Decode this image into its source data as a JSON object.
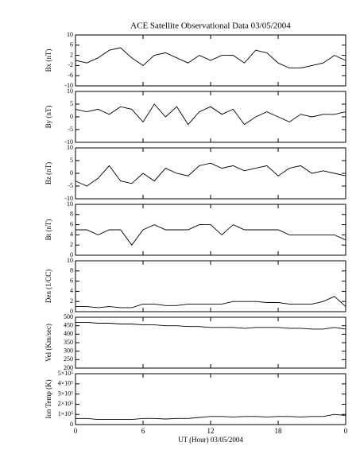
{
  "chart_data": [
    {
      "type": "line",
      "title": "ACE Satellite Observational Data   03/05/2004",
      "ylabel": "Bx (nT)",
      "color": "#000000",
      "x": [
        0,
        1,
        2,
        3,
        4,
        5,
        6,
        7,
        8,
        9,
        10,
        11,
        12,
        13,
        14,
        15,
        16,
        17,
        18,
        19,
        20,
        21,
        22,
        23,
        24
      ],
      "values": [
        0,
        -1,
        1,
        4,
        5,
        1,
        -2,
        2,
        3,
        1,
        -1,
        2,
        0,
        2,
        2,
        -1,
        4,
        3,
        -1,
        -3,
        -3,
        -2,
        -1,
        2,
        0
      ],
      "xlim": [
        0,
        24
      ],
      "xticks": [
        0,
        6,
        12,
        18,
        {
          "value": 24,
          "label": "0"
        }
      ],
      "ylim": [
        -10,
        10
      ],
      "yticks": [
        10,
        6,
        2,
        -2,
        -6,
        -10
      ]
    },
    {
      "type": "line",
      "ylabel": "By (nT)",
      "color": "#000000",
      "x": [
        0,
        1,
        2,
        3,
        4,
        5,
        6,
        7,
        8,
        9,
        10,
        11,
        12,
        13,
        14,
        15,
        16,
        17,
        18,
        19,
        20,
        21,
        22,
        23,
        24
      ],
      "values": [
        3,
        2,
        3,
        1,
        4,
        3,
        -2,
        5,
        0,
        4,
        -3,
        2,
        4,
        1,
        3,
        -3,
        0,
        2,
        0,
        -2,
        1,
        0,
        1,
        1,
        2
      ],
      "xlim": [
        0,
        24
      ],
      "xticks": [
        0,
        6,
        12,
        18,
        {
          "value": 24,
          "label": "0"
        }
      ],
      "ylim": [
        -10,
        10
      ],
      "yticks": [
        10,
        5,
        0,
        -5,
        -10
      ]
    },
    {
      "type": "line",
      "ylabel": "Bz (nT)",
      "color": "#000000",
      "x": [
        0,
        1,
        2,
        3,
        4,
        5,
        6,
        7,
        8,
        9,
        10,
        11,
        12,
        13,
        14,
        15,
        16,
        17,
        18,
        19,
        20,
        21,
        22,
        23,
        24
      ],
      "values": [
        -3,
        -5,
        -2,
        3,
        -3,
        -4,
        0,
        -3,
        2,
        0,
        -1,
        3,
        4,
        2,
        3,
        1,
        2,
        3,
        -1,
        2,
        3,
        0,
        1,
        0,
        -1
      ],
      "xlim": [
        0,
        24
      ],
      "xticks": [
        0,
        6,
        12,
        18,
        {
          "value": 24,
          "label": "0"
        }
      ],
      "ylim": [
        -10,
        10
      ],
      "yticks": [
        10,
        5,
        0,
        -5,
        -10
      ]
    },
    {
      "type": "line",
      "ylabel": "Bt (nT)",
      "color": "#000000",
      "x": [
        0,
        1,
        2,
        3,
        4,
        5,
        6,
        7,
        8,
        9,
        10,
        11,
        12,
        13,
        14,
        15,
        16,
        17,
        18,
        19,
        20,
        21,
        22,
        23,
        24
      ],
      "values": [
        5,
        5,
        4,
        5,
        5,
        2,
        5,
        6,
        5,
        5,
        5,
        6,
        6,
        4,
        6,
        5,
        5,
        5,
        5,
        4,
        4,
        4,
        4,
        4,
        3
      ],
      "xlim": [
        0,
        24
      ],
      "xticks": [
        0,
        6,
        12,
        18,
        {
          "value": 24,
          "label": "0"
        }
      ],
      "ylim": [
        0,
        10
      ],
      "yticks": [
        10,
        8,
        6,
        4,
        2,
        0
      ]
    },
    {
      "type": "line",
      "ylabel": "Den (1/CC)",
      "color": "#000000",
      "x": [
        0,
        1,
        2,
        3,
        4,
        5,
        6,
        7,
        8,
        9,
        10,
        11,
        12,
        13,
        14,
        15,
        16,
        17,
        18,
        19,
        20,
        21,
        22,
        23,
        24
      ],
      "values": [
        1,
        1,
        0.8,
        1,
        0.8,
        0.8,
        1.5,
        1.5,
        1.2,
        1.2,
        1.5,
        1.5,
        1.5,
        1.5,
        2,
        2,
        2,
        1.8,
        1.8,
        1.5,
        1.5,
        1.5,
        2,
        3,
        1
      ],
      "xlim": [
        0,
        24
      ],
      "xticks": [
        0,
        6,
        12,
        18,
        {
          "value": 24,
          "label": "0"
        }
      ],
      "ylim": [
        0,
        10
      ],
      "yticks": [
        10,
        8,
        6,
        4,
        2,
        0
      ]
    },
    {
      "type": "line",
      "ylabel": "Vel (Km/sec)",
      "color": "#000000",
      "x": [
        0,
        1,
        2,
        3,
        4,
        5,
        6,
        7,
        8,
        9,
        10,
        11,
        12,
        13,
        14,
        15,
        16,
        17,
        18,
        19,
        20,
        21,
        22,
        23,
        24
      ],
      "values": [
        470,
        470,
        465,
        465,
        460,
        460,
        455,
        455,
        450,
        450,
        445,
        445,
        440,
        440,
        440,
        435,
        440,
        440,
        440,
        435,
        435,
        430,
        430,
        440,
        430
      ],
      "xlim": [
        0,
        24
      ],
      "xticks": [
        0,
        6,
        12,
        18,
        {
          "value": 24,
          "label": "0"
        }
      ],
      "ylim": [
        200,
        500
      ],
      "yticks": [
        500,
        450,
        400,
        350,
        300,
        250,
        200
      ]
    },
    {
      "type": "line",
      "ylabel": "Ion Temp (K)",
      "xlabel": "UT (Hour)   03/05/2004",
      "color": "#000000",
      "x": [
        0,
        1,
        2,
        3,
        4,
        5,
        6,
        7,
        8,
        9,
        10,
        11,
        12,
        13,
        14,
        15,
        16,
        17,
        18,
        19,
        20,
        21,
        22,
        23,
        24
      ],
      "values": [
        60000,
        60000,
        50000,
        50000,
        50000,
        50000,
        60000,
        60000,
        55000,
        60000,
        60000,
        70000,
        80000,
        80000,
        75000,
        80000,
        80000,
        75000,
        80000,
        80000,
        75000,
        80000,
        80000,
        100000,
        90000
      ],
      "xlim": [
        0,
        24
      ],
      "xticks": [
        0,
        6,
        12,
        18,
        {
          "value": 24,
          "label": "0"
        }
      ],
      "show_xtick_labels": true,
      "ylim": [
        0,
        500000
      ],
      "yticks": [
        {
          "value": 500000,
          "label": "5×10⁵"
        },
        {
          "value": 400000,
          "label": "4×10⁵"
        },
        {
          "value": 300000,
          "label": "3×10⁵"
        },
        {
          "value": 200000,
          "label": "2×10⁵"
        },
        {
          "value": 100000,
          "label": "1×10⁵"
        },
        0
      ]
    }
  ]
}
